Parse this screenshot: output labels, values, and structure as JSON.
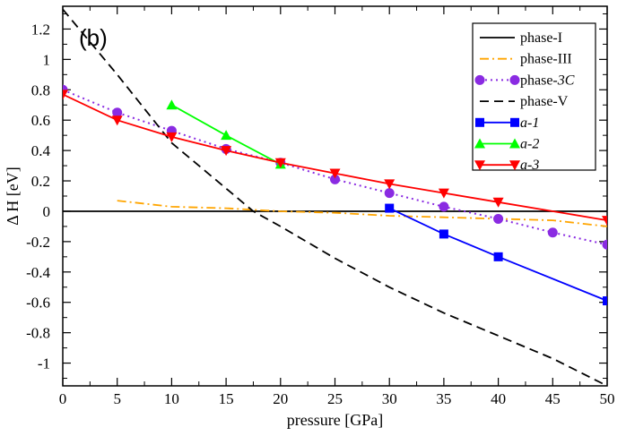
{
  "chart_data": {
    "type": "line",
    "title": "",
    "panel_label": "(b)",
    "xlabel": "pressure [GPa]",
    "ylabel": "Δ H [eV]",
    "xlim": [
      0,
      50
    ],
    "ylim": [
      -1.15,
      1.35
    ],
    "xticks": [
      0,
      5,
      10,
      15,
      20,
      25,
      30,
      35,
      40,
      45,
      50
    ],
    "yticks": [
      -1,
      -0.8,
      -0.6,
      -0.4,
      -0.2,
      0,
      0.2,
      0.4,
      0.6,
      0.8,
      1,
      1.2
    ],
    "x_tick_labels": [
      "0",
      "5",
      "10",
      "15",
      "20",
      "25",
      "30",
      "35",
      "40",
      "45",
      "50"
    ],
    "y_tick_labels": [
      "-1",
      "-0.8",
      "-0.6",
      "-0.4",
      "-0.2",
      "0",
      "0.2",
      "0.4",
      "0.6",
      "0.8",
      "1",
      "1.2"
    ],
    "grid": false,
    "legend_position": "top-right",
    "series": [
      {
        "name": "phase-I",
        "italic_part": "",
        "color": "#000000",
        "style": "solid",
        "marker": "none",
        "x": [
          0,
          50
        ],
        "values": [
          0,
          0
        ]
      },
      {
        "name": "phase-III",
        "italic_part": "",
        "color": "#ffa500",
        "style": "dashdot",
        "marker": "none",
        "x": [
          5,
          10,
          15,
          20,
          25,
          30,
          35,
          40,
          45,
          50
        ],
        "values": [
          0.07,
          0.03,
          0.02,
          0.0,
          -0.01,
          -0.03,
          -0.04,
          -0.05,
          -0.06,
          -0.1
        ]
      },
      {
        "name": "phase-",
        "italic_part": "3C",
        "color": "#8a2be2",
        "style": "dotted",
        "marker": "circle",
        "x": [
          0,
          5,
          10,
          15,
          20,
          25,
          30,
          35,
          40,
          45,
          50
        ],
        "values": [
          0.8,
          0.65,
          0.53,
          0.41,
          0.32,
          0.21,
          0.12,
          0.03,
          -0.05,
          -0.14,
          -0.22
        ]
      },
      {
        "name": "phase-V",
        "italic_part": "",
        "color": "#000000",
        "style": "dashed",
        "marker": "none",
        "x": [
          0,
          5,
          10,
          15,
          17.5,
          20,
          25,
          30,
          35,
          40,
          45,
          50
        ],
        "values": [
          1.33,
          0.9,
          0.45,
          0.15,
          0.0,
          -0.1,
          -0.31,
          -0.5,
          -0.67,
          -0.82,
          -0.97,
          -1.15
        ]
      },
      {
        "name": "",
        "italic_part": "a-1",
        "color": "#0000ff",
        "style": "solid",
        "marker": "square",
        "x": [
          30,
          35,
          40,
          50
        ],
        "values": [
          0.02,
          -0.15,
          -0.3,
          -0.59
        ]
      },
      {
        "name": "",
        "italic_part": "a-2",
        "color": "#00ff00",
        "style": "solid",
        "marker": "triangle-up",
        "x": [
          10,
          15,
          20
        ],
        "values": [
          0.7,
          0.5,
          0.31
        ]
      },
      {
        "name": "",
        "italic_part": "a-3",
        "color": "#ff0000",
        "style": "solid",
        "marker": "triangle-down",
        "x": [
          0,
          5,
          10,
          15,
          20,
          25,
          30,
          35,
          40,
          50
        ],
        "values": [
          0.77,
          0.6,
          0.49,
          0.4,
          0.32,
          0.25,
          0.18,
          0.12,
          0.06,
          -0.06
        ]
      }
    ]
  }
}
